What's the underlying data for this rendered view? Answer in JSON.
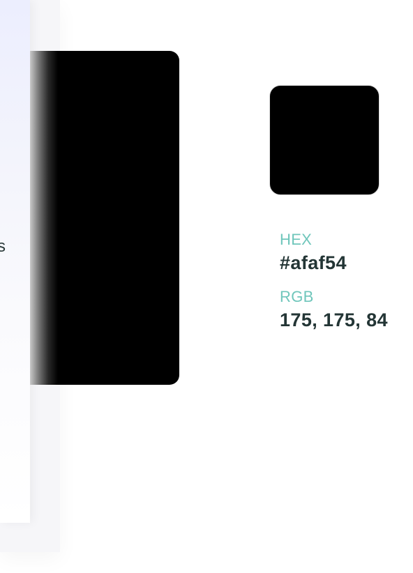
{
  "panel": {
    "edge_glyph": "s"
  },
  "preview": {
    "color": "#000000"
  },
  "swatch": {
    "color": "#000000"
  },
  "color_info": {
    "hex_label": "HEX",
    "hex_value": "#afaf54",
    "rgb_label": "RGB",
    "rgb_value": "175, 175, 84"
  },
  "colors": {
    "label_accent": "#6fc6bb",
    "value_text": "#233535",
    "panel_tint": "#eceefe"
  }
}
